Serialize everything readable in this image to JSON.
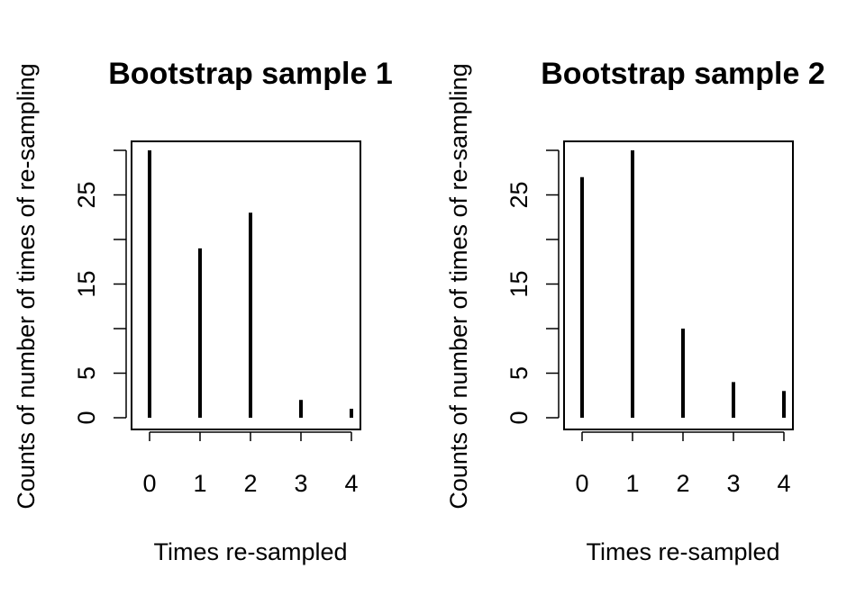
{
  "chart_data": [
    {
      "type": "bar",
      "title": "Bootstrap sample 1",
      "xlabel": "Times re-sampled",
      "ylabel": "Counts of number of times of re-sampling",
      "categories": [
        0,
        1,
        2,
        3,
        4
      ],
      "values": [
        30,
        19,
        23,
        2,
        1
      ],
      "ylim": [
        0,
        30
      ],
      "yticks": [
        0,
        5,
        15,
        25
      ],
      "yticks_unlabeled": [
        10,
        20,
        30
      ],
      "grid": false
    },
    {
      "type": "bar",
      "title": "Bootstrap sample 2",
      "xlabel": "Times re-sampled",
      "ylabel": "Counts of number of times of re-sampling",
      "categories": [
        0,
        1,
        2,
        3,
        4
      ],
      "values": [
        27,
        30,
        10,
        4,
        3
      ],
      "ylim": [
        0,
        30
      ],
      "yticks": [
        0,
        5,
        15,
        25
      ],
      "yticks_unlabeled": [
        10,
        20,
        30
      ],
      "grid": false
    }
  ]
}
